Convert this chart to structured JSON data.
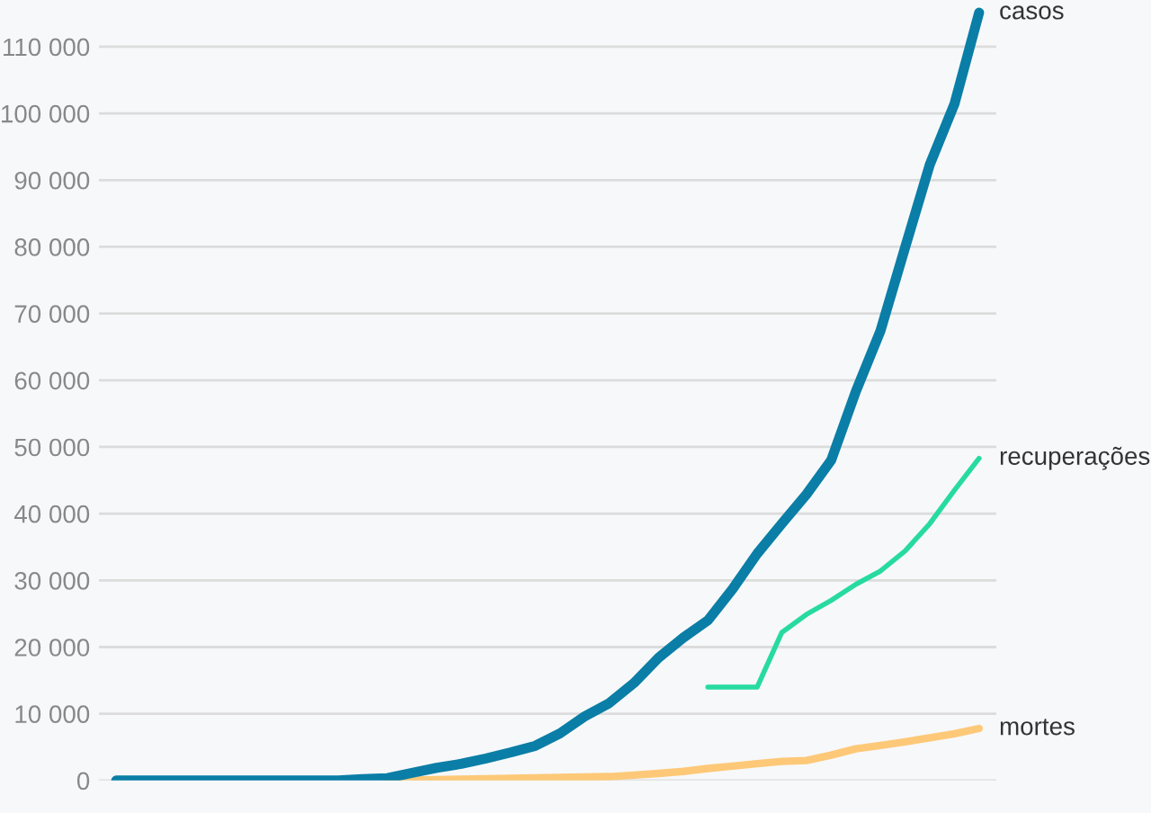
{
  "chart_data": {
    "type": "line",
    "ylim": [
      0,
      117000
    ],
    "categories": [
      null,
      null,
      null,
      null,
      null,
      null,
      null,
      null,
      null,
      null,
      null,
      null,
      null,
      null,
      null,
      null,
      null,
      null,
      null,
      null,
      null,
      null,
      null,
      null,
      null,
      null,
      null,
      null,
      null,
      null,
      null,
      null,
      null,
      null,
      null,
      null
    ],
    "yticks": [
      {
        "value": 0,
        "label": "0"
      },
      {
        "value": 10000,
        "label": "10 000"
      },
      {
        "value": 20000,
        "label": "20 000"
      },
      {
        "value": 30000,
        "label": "30 000"
      },
      {
        "value": 40000,
        "label": "40 000"
      },
      {
        "value": 50000,
        "label": "50 000"
      },
      {
        "value": 60000,
        "label": "60 000"
      },
      {
        "value": 70000,
        "label": "70 000"
      },
      {
        "value": 80000,
        "label": "80 000"
      },
      {
        "value": 90000,
        "label": "90 000"
      },
      {
        "value": 100000,
        "label": "100 000"
      },
      {
        "value": 110000,
        "label": "110 000"
      }
    ],
    "grid": "y",
    "tick_labels": "y",
    "marker": "none",
    "line_style": "solid",
    "series": [
      {
        "name": "casos",
        "color": "#0a7ea6",
        "values": [
          0,
          0,
          0,
          0,
          0,
          0,
          0,
          0,
          0,
          0,
          200,
          350,
          1150,
          1900,
          2500,
          3300,
          4200,
          5200,
          7050,
          9600,
          11600,
          14600,
          18400,
          21400,
          24000,
          28700,
          34000,
          38500,
          42900,
          48000,
          58300,
          67400,
          79900,
          92300,
          101400,
          115100
        ]
      },
      {
        "name": "recuperações",
        "color": "#27dba0",
        "values": [
          null,
          null,
          null,
          null,
          null,
          null,
          null,
          null,
          null,
          null,
          null,
          null,
          null,
          null,
          null,
          null,
          null,
          null,
          null,
          null,
          null,
          null,
          null,
          null,
          14000,
          14000,
          14000,
          22200,
          24900,
          27000,
          29400,
          31400,
          34400,
          38500,
          43500,
          48300
        ]
      },
      {
        "name": "mortes",
        "color": "#fdc978",
        "values": [
          null,
          null,
          null,
          null,
          null,
          null,
          null,
          null,
          null,
          null,
          null,
          0,
          60,
          130,
          200,
          260,
          320,
          390,
          450,
          520,
          580,
          800,
          1060,
          1360,
          1800,
          2150,
          2530,
          2870,
          3000,
          3800,
          4750,
          5250,
          5800,
          6400,
          7000,
          7800
        ]
      }
    ]
  }
}
